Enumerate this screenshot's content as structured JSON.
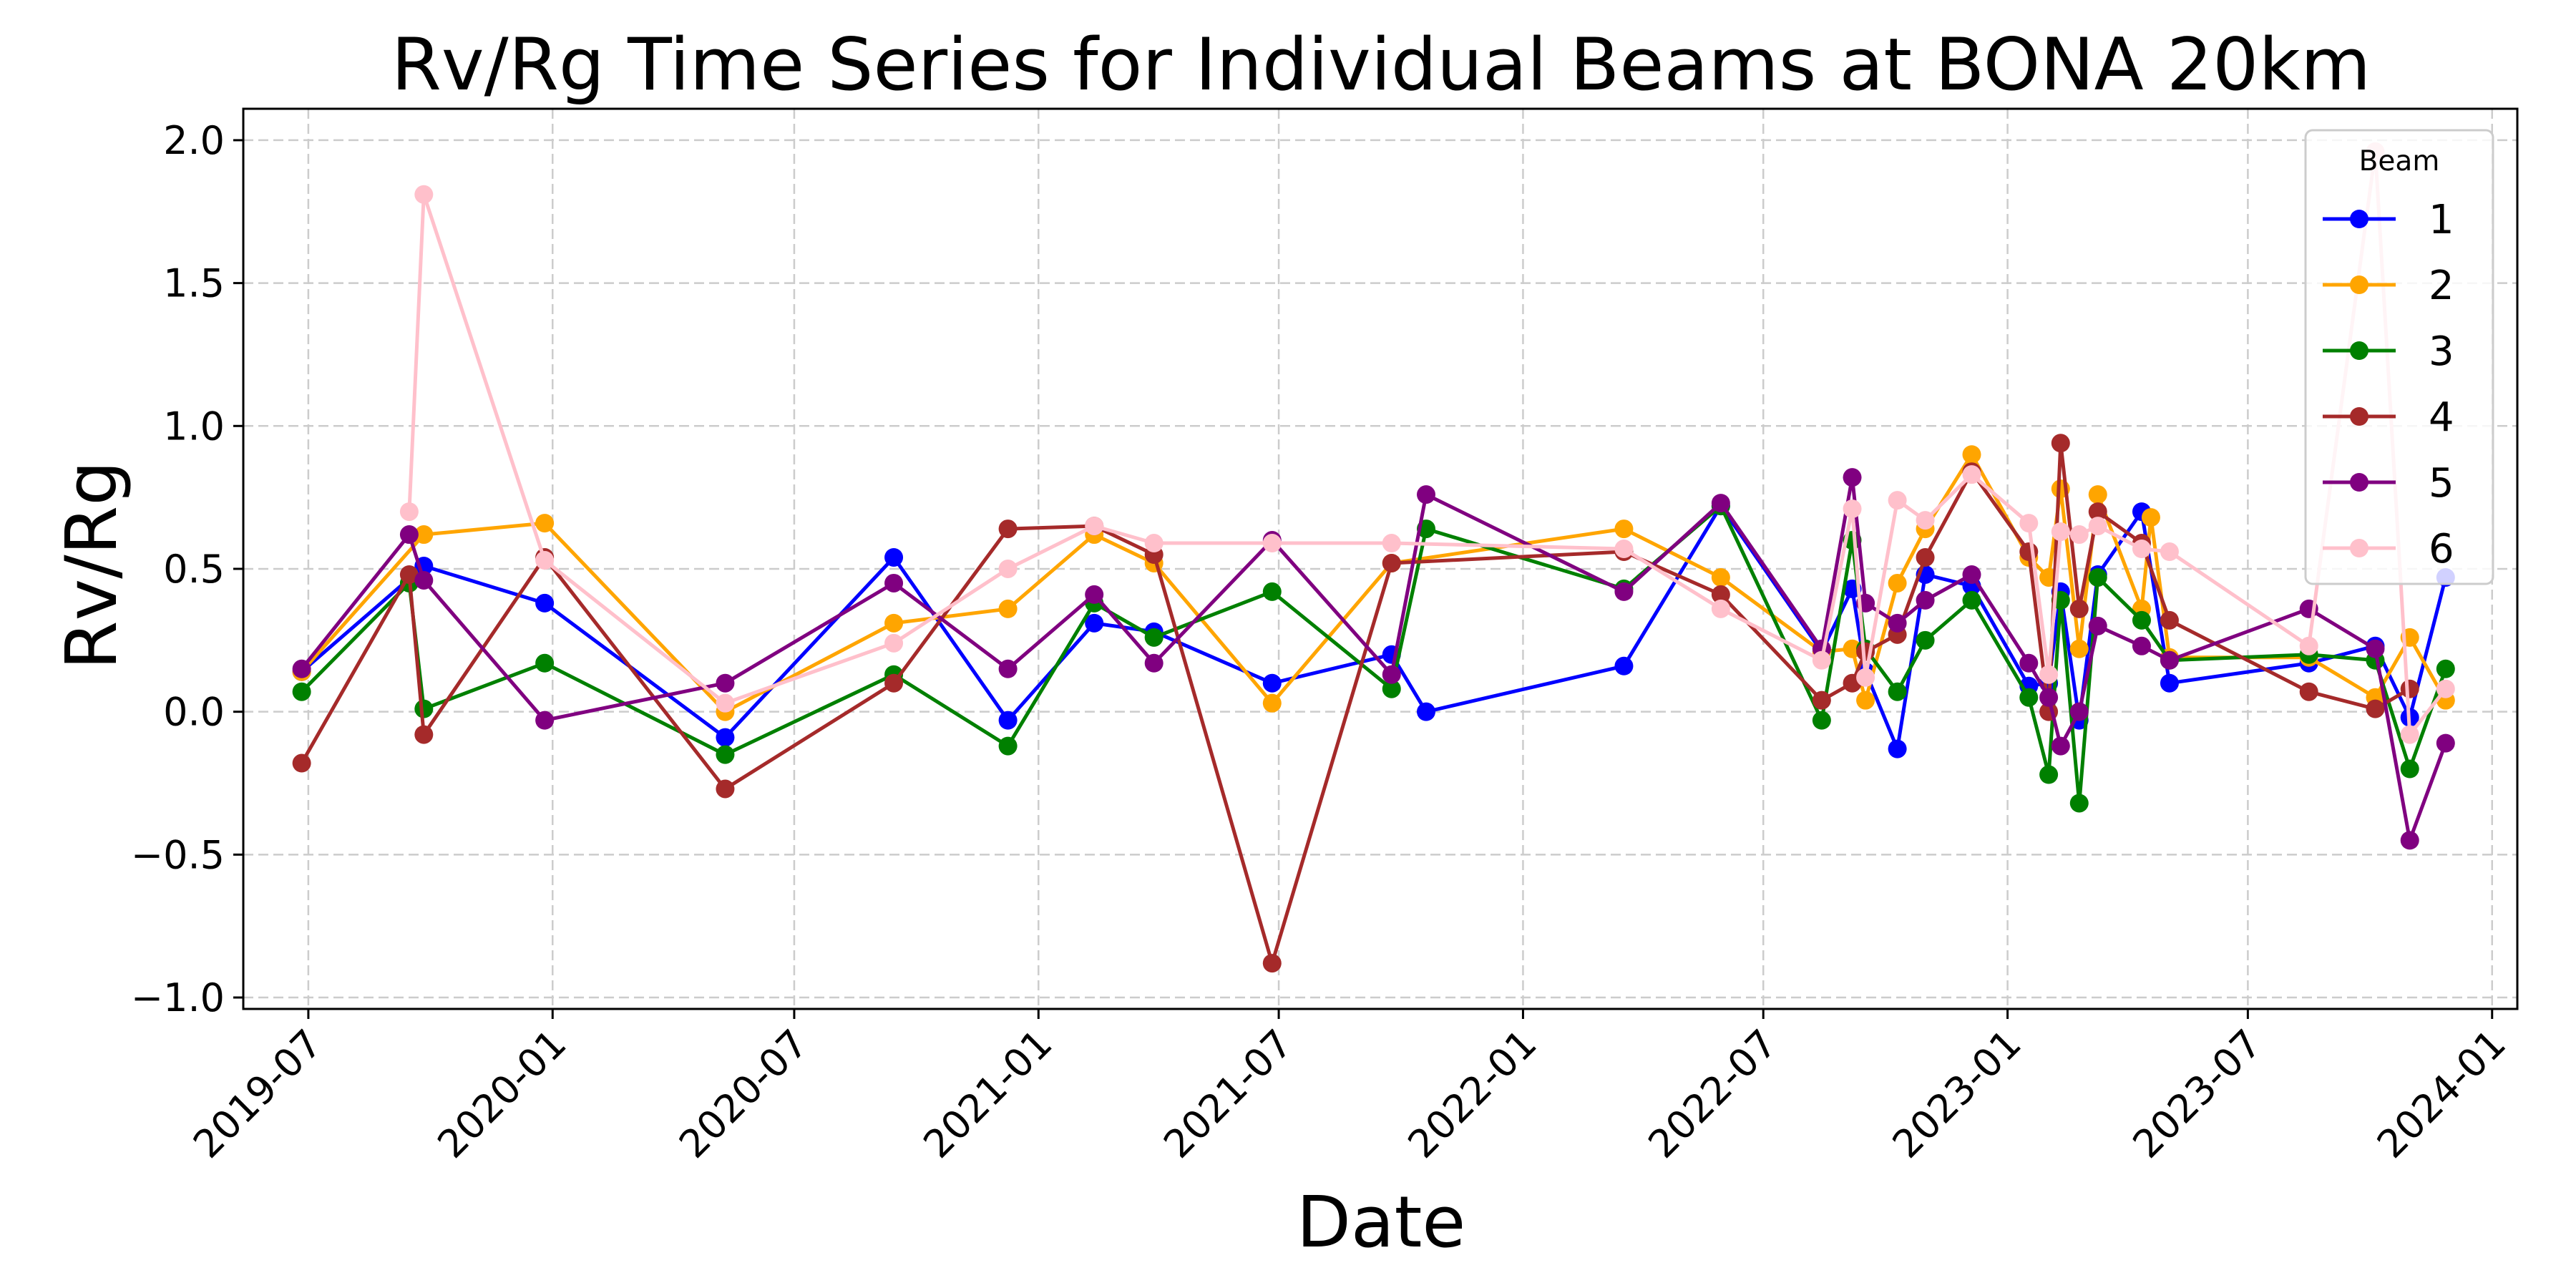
{
  "chart_data": {
    "type": "line",
    "title": "Rv/Rg Time Series for Individual Beams at BONA 20km",
    "xlabel": "Date",
    "ylabel": "Rv/Rg",
    "xlim": [
      "2019-05-13",
      "2024-01-20"
    ],
    "ylim": [
      -1.04,
      2.11
    ],
    "grid": true,
    "legend": {
      "title": "Beam",
      "position": "top-right"
    },
    "x_ticks": [
      {
        "date": "2019-07-01",
        "label": "2019-07"
      },
      {
        "date": "2020-01-01",
        "label": "2020-01"
      },
      {
        "date": "2020-07-01",
        "label": "2020-07"
      },
      {
        "date": "2021-01-01",
        "label": "2021-01"
      },
      {
        "date": "2021-07-01",
        "label": "2021-07"
      },
      {
        "date": "2022-01-01",
        "label": "2022-01"
      },
      {
        "date": "2022-07-01",
        "label": "2022-07"
      },
      {
        "date": "2023-01-01",
        "label": "2023-01"
      },
      {
        "date": "2023-07-01",
        "label": "2023-07"
      },
      {
        "date": "2024-01-01",
        "label": "2024-01"
      }
    ],
    "y_ticks": [
      {
        "value": 2.0,
        "label": "2.0"
      },
      {
        "value": 1.5,
        "label": "1.5"
      },
      {
        "value": 1.0,
        "label": "1.0"
      },
      {
        "value": 0.5,
        "label": "0.5"
      },
      {
        "value": 0.0,
        "label": "0.0"
      },
      {
        "value": -0.5,
        "label": "−0.5"
      },
      {
        "value": -1.0,
        "label": "−1.0"
      }
    ],
    "series": [
      {
        "name": "1",
        "color": "#0000ff",
        "points": [
          [
            "2019-06-26",
            0.14
          ],
          [
            "2019-09-26",
            0.51
          ],
          [
            "2019-12-26",
            0.38
          ],
          [
            "2020-05-10",
            -0.09
          ],
          [
            "2020-09-14",
            0.54
          ],
          [
            "2020-12-09",
            -0.03
          ],
          [
            "2021-02-12",
            0.31
          ],
          [
            "2021-03-29",
            0.28
          ],
          [
            "2021-06-26",
            0.1
          ],
          [
            "2021-09-24",
            0.2
          ],
          [
            "2021-10-20",
            0.0
          ],
          [
            "2022-03-18",
            0.16
          ],
          [
            "2022-05-30",
            0.72
          ],
          [
            "2022-08-14",
            0.21
          ],
          [
            "2022-09-06",
            0.43
          ],
          [
            "2022-09-16",
            0.14
          ],
          [
            "2022-10-10",
            -0.13
          ],
          [
            "2022-10-31",
            0.48
          ],
          [
            "2022-12-05",
            0.44
          ],
          [
            "2023-01-17",
            0.09
          ],
          [
            "2023-02-01",
            0.1
          ],
          [
            "2023-02-10",
            0.42
          ],
          [
            "2023-02-24",
            -0.03
          ],
          [
            "2023-03-10",
            0.48
          ],
          [
            "2023-04-12",
            0.7
          ],
          [
            "2023-05-03",
            0.1
          ],
          [
            "2023-08-16",
            0.17
          ],
          [
            "2023-10-05",
            0.23
          ],
          [
            "2023-10-31",
            -0.02
          ],
          [
            "2023-11-27",
            0.47
          ]
        ]
      },
      {
        "name": "2",
        "color": "#ffa500",
        "points": [
          [
            "2019-06-26",
            0.14
          ],
          [
            "2019-09-26",
            0.62
          ],
          [
            "2019-12-26",
            0.66
          ],
          [
            "2020-05-10",
            0.0
          ],
          [
            "2020-09-14",
            0.31
          ],
          [
            "2020-12-09",
            0.36
          ],
          [
            "2021-02-12",
            0.62
          ],
          [
            "2021-03-29",
            0.52
          ],
          [
            "2021-06-26",
            0.03
          ],
          [
            "2021-09-24",
            0.52
          ],
          [
            "2022-03-18",
            0.64
          ],
          [
            "2022-05-30",
            0.47
          ],
          [
            "2022-08-14",
            0.21
          ],
          [
            "2022-09-06",
            0.22
          ],
          [
            "2022-09-16",
            0.04
          ],
          [
            "2022-10-10",
            0.45
          ],
          [
            "2022-10-31",
            0.64
          ],
          [
            "2022-12-05",
            0.9
          ],
          [
            "2023-01-17",
            0.54
          ],
          [
            "2023-02-01",
            0.47
          ],
          [
            "2023-02-10",
            0.78
          ],
          [
            "2023-02-24",
            0.22
          ],
          [
            "2023-03-10",
            0.76
          ],
          [
            "2023-04-12",
            0.36
          ],
          [
            "2023-04-19",
            0.68
          ],
          [
            "2023-05-03",
            0.19
          ],
          [
            "2023-08-16",
            0.19
          ],
          [
            "2023-10-05",
            0.05
          ],
          [
            "2023-10-31",
            0.26
          ],
          [
            "2023-11-27",
            0.04
          ]
        ]
      },
      {
        "name": "3",
        "color": "#008000",
        "points": [
          [
            "2019-06-26",
            0.07
          ],
          [
            "2019-09-15",
            0.45
          ],
          [
            "2019-09-26",
            0.01
          ],
          [
            "2019-12-26",
            0.17
          ],
          [
            "2020-05-10",
            -0.15
          ],
          [
            "2020-09-14",
            0.13
          ],
          [
            "2020-12-09",
            -0.12
          ],
          [
            "2021-02-12",
            0.38
          ],
          [
            "2021-03-29",
            0.26
          ],
          [
            "2021-06-26",
            0.42
          ],
          [
            "2021-09-24",
            0.08
          ],
          [
            "2021-10-20",
            0.64
          ],
          [
            "2022-03-18",
            0.43
          ],
          [
            "2022-05-30",
            0.72
          ],
          [
            "2022-08-14",
            -0.03
          ],
          [
            "2022-09-06",
            0.6
          ],
          [
            "2022-09-16",
            0.22
          ],
          [
            "2022-10-10",
            0.07
          ],
          [
            "2022-10-31",
            0.25
          ],
          [
            "2022-12-05",
            0.39
          ],
          [
            "2023-01-17",
            0.05
          ],
          [
            "2023-02-01",
            -0.22
          ],
          [
            "2023-02-10",
            0.39
          ],
          [
            "2023-02-24",
            -0.32
          ],
          [
            "2023-03-10",
            0.47
          ],
          [
            "2023-04-12",
            0.32
          ],
          [
            "2023-05-03",
            0.18
          ],
          [
            "2023-08-16",
            0.2
          ],
          [
            "2023-10-05",
            0.18
          ],
          [
            "2023-10-31",
            -0.2
          ],
          [
            "2023-11-27",
            0.15
          ]
        ]
      },
      {
        "name": "4",
        "color": "#a52a2a",
        "points": [
          [
            "2019-06-26",
            -0.18
          ],
          [
            "2019-09-15",
            0.48
          ],
          [
            "2019-09-26",
            -0.08
          ],
          [
            "2019-12-26",
            0.54
          ],
          [
            "2020-05-10",
            -0.27
          ],
          [
            "2020-09-14",
            0.1
          ],
          [
            "2020-12-09",
            0.64
          ],
          [
            "2021-02-12",
            0.65
          ],
          [
            "2021-03-29",
            0.55
          ],
          [
            "2021-06-26",
            -0.88
          ],
          [
            "2021-09-24",
            0.52
          ],
          [
            "2022-03-18",
            0.56
          ],
          [
            "2022-05-30",
            0.41
          ],
          [
            "2022-08-14",
            0.04
          ],
          [
            "2022-09-06",
            0.1
          ],
          [
            "2022-09-16",
            0.21
          ],
          [
            "2022-10-10",
            0.27
          ],
          [
            "2022-10-31",
            0.54
          ],
          [
            "2022-12-05",
            0.84
          ],
          [
            "2023-01-17",
            0.56
          ],
          [
            "2023-02-01",
            0.0
          ],
          [
            "2023-02-10",
            0.94
          ],
          [
            "2023-02-24",
            0.36
          ],
          [
            "2023-03-10",
            0.7
          ],
          [
            "2023-04-12",
            0.59
          ],
          [
            "2023-05-03",
            0.32
          ],
          [
            "2023-08-16",
            0.07
          ],
          [
            "2023-10-05",
            0.01
          ],
          [
            "2023-10-31",
            0.08
          ]
        ]
      },
      {
        "name": "5",
        "color": "#800080",
        "points": [
          [
            "2019-06-26",
            0.15
          ],
          [
            "2019-09-15",
            0.62
          ],
          [
            "2019-09-26",
            0.46
          ],
          [
            "2019-12-26",
            -0.03
          ],
          [
            "2020-05-10",
            0.1
          ],
          [
            "2020-09-14",
            0.45
          ],
          [
            "2020-12-09",
            0.15
          ],
          [
            "2021-02-12",
            0.41
          ],
          [
            "2021-03-29",
            0.17
          ],
          [
            "2021-06-26",
            0.6
          ],
          [
            "2021-09-24",
            0.13
          ],
          [
            "2021-10-20",
            0.76
          ],
          [
            "2022-03-18",
            0.42
          ],
          [
            "2022-05-30",
            0.73
          ],
          [
            "2022-08-14",
            0.22
          ],
          [
            "2022-09-06",
            0.82
          ],
          [
            "2022-09-16",
            0.38
          ],
          [
            "2022-10-10",
            0.31
          ],
          [
            "2022-10-31",
            0.39
          ],
          [
            "2022-12-05",
            0.48
          ],
          [
            "2023-01-17",
            0.17
          ],
          [
            "2023-02-01",
            0.05
          ],
          [
            "2023-02-10",
            -0.12
          ],
          [
            "2023-02-24",
            0.0
          ],
          [
            "2023-03-10",
            0.3
          ],
          [
            "2023-04-12",
            0.23
          ],
          [
            "2023-05-03",
            0.18
          ],
          [
            "2023-08-16",
            0.36
          ],
          [
            "2023-10-05",
            0.22
          ],
          [
            "2023-10-31",
            -0.45
          ],
          [
            "2023-11-27",
            -0.11
          ]
        ]
      },
      {
        "name": "6",
        "color": "#ffc0cb",
        "points": [
          [
            "2019-09-15",
            0.7
          ],
          [
            "2019-09-26",
            1.81
          ],
          [
            "2019-12-26",
            0.53
          ],
          [
            "2020-05-10",
            0.03
          ],
          [
            "2020-09-14",
            0.24
          ],
          [
            "2020-12-09",
            0.5
          ],
          [
            "2021-02-12",
            0.65
          ],
          [
            "2021-03-29",
            0.59
          ],
          [
            "2021-06-26",
            0.59
          ],
          [
            "2021-09-24",
            0.59
          ],
          [
            "2022-03-18",
            0.57
          ],
          [
            "2022-05-30",
            0.36
          ],
          [
            "2022-08-14",
            0.18
          ],
          [
            "2022-09-06",
            0.71
          ],
          [
            "2022-09-16",
            0.12
          ],
          [
            "2022-10-10",
            0.74
          ],
          [
            "2022-10-31",
            0.67
          ],
          [
            "2022-12-05",
            0.83
          ],
          [
            "2023-01-17",
            0.66
          ],
          [
            "2023-02-01",
            0.13
          ],
          [
            "2023-02-10",
            0.63
          ],
          [
            "2023-02-24",
            0.62
          ],
          [
            "2023-03-10",
            0.65
          ],
          [
            "2023-04-12",
            0.57
          ],
          [
            "2023-05-03",
            0.56
          ],
          [
            "2023-08-16",
            0.23
          ],
          [
            "2023-10-05",
            1.96
          ],
          [
            "2023-10-31",
            -0.08
          ],
          [
            "2023-11-27",
            0.08
          ]
        ]
      }
    ]
  }
}
